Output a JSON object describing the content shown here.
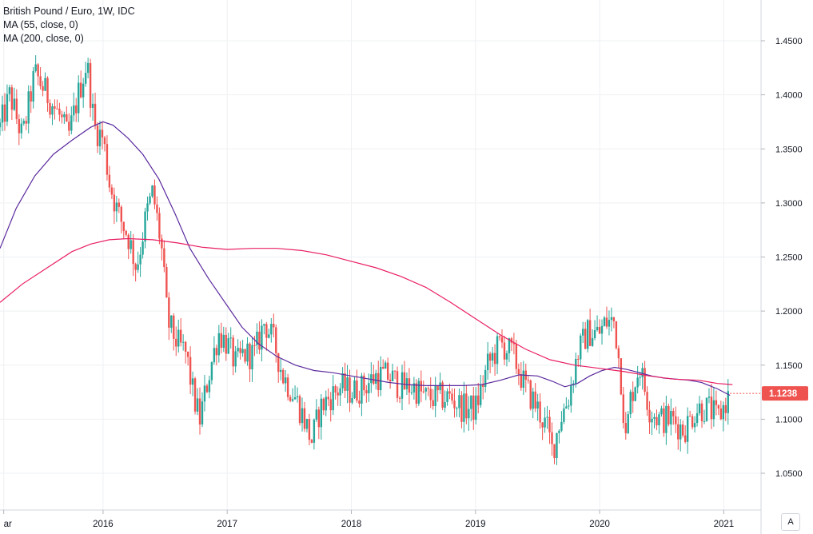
{
  "legend": {
    "title": "British Pound / Euro, 1W, IDC",
    "ma55": "MA (55, close, 0)",
    "ma200": "MA (200, close, 0)"
  },
  "price_label": "1.1238",
  "auto_button": "A",
  "colors": {
    "up": "#26a69a",
    "down": "#ef5350",
    "ma55": "#5b2a9e",
    "ma200": "#e91e63",
    "grid": "#eef0f3",
    "price_label_bg": "#ef5350"
  },
  "chart_data": {
    "type": "candlestick",
    "title": "British Pound / Euro, 1W, IDC",
    "xlabel": "",
    "ylabel": "",
    "ylim": [
      1.03,
      1.48
    ],
    "y_ticks": [
      "1.0500",
      "1.1000",
      "1.1500",
      "1.2000",
      "1.2500",
      "1.3000",
      "1.3500",
      "1.4000",
      "1.4500"
    ],
    "x_ticks": [
      "ar",
      "2016",
      "2017",
      "2018",
      "2019",
      "2020",
      "2021"
    ],
    "x_tick_values": [
      2015.2,
      2016.0,
      2017.0,
      2018.0,
      2019.0,
      2020.0,
      2021.0
    ],
    "xlim": [
      2015.17,
      2021.3
    ],
    "last_price": 1.1238,
    "close_path": [
      [
        2015.17,
        1.37
      ],
      [
        2015.25,
        1.4
      ],
      [
        2015.35,
        1.36
      ],
      [
        2015.45,
        1.42
      ],
      [
        2015.55,
        1.4
      ],
      [
        2015.65,
        1.38
      ],
      [
        2015.72,
        1.36
      ],
      [
        2015.8,
        1.4
      ],
      [
        2015.87,
        1.43
      ],
      [
        2015.93,
        1.37
      ],
      [
        2016.0,
        1.36
      ],
      [
        2016.05,
        1.32
      ],
      [
        2016.12,
        1.29
      ],
      [
        2016.2,
        1.27
      ],
      [
        2016.27,
        1.24
      ],
      [
        2016.35,
        1.29
      ],
      [
        2016.4,
        1.31
      ],
      [
        2016.47,
        1.26
      ],
      [
        2016.52,
        1.19
      ],
      [
        2016.6,
        1.17
      ],
      [
        2016.67,
        1.16
      ],
      [
        2016.73,
        1.12
      ],
      [
        2016.78,
        1.1
      ],
      [
        2016.85,
        1.14
      ],
      [
        2016.93,
        1.18
      ],
      [
        2017.0,
        1.17
      ],
      [
        2017.07,
        1.15
      ],
      [
        2017.13,
        1.16
      ],
      [
        2017.22,
        1.16
      ],
      [
        2017.3,
        1.19
      ],
      [
        2017.38,
        1.17
      ],
      [
        2017.45,
        1.14
      ],
      [
        2017.55,
        1.12
      ],
      [
        2017.62,
        1.1
      ],
      [
        2017.68,
        1.08
      ],
      [
        2017.75,
        1.11
      ],
      [
        2017.82,
        1.12
      ],
      [
        2017.92,
        1.13
      ],
      [
        2018.0,
        1.125
      ],
      [
        2018.1,
        1.13
      ],
      [
        2018.2,
        1.14
      ],
      [
        2018.3,
        1.14
      ],
      [
        2018.4,
        1.13
      ],
      [
        2018.5,
        1.13
      ],
      [
        2018.6,
        1.12
      ],
      [
        2018.7,
        1.12
      ],
      [
        2018.8,
        1.12
      ],
      [
        2018.9,
        1.11
      ],
      [
        2019.0,
        1.11
      ],
      [
        2019.1,
        1.15
      ],
      [
        2019.2,
        1.17
      ],
      [
        2019.3,
        1.16
      ],
      [
        2019.4,
        1.13
      ],
      [
        2019.5,
        1.11
      ],
      [
        2019.58,
        1.09
      ],
      [
        2019.62,
        1.07
      ],
      [
        2019.68,
        1.1
      ],
      [
        2019.75,
        1.12
      ],
      [
        2019.82,
        1.16
      ],
      [
        2019.9,
        1.18
      ],
      [
        2020.0,
        1.18
      ],
      [
        2020.05,
        1.19
      ],
      [
        2020.12,
        1.19
      ],
      [
        2020.17,
        1.14
      ],
      [
        2020.21,
        1.08
      ],
      [
        2020.25,
        1.12
      ],
      [
        2020.32,
        1.15
      ],
      [
        2020.4,
        1.11
      ],
      [
        2020.48,
        1.1
      ],
      [
        2020.58,
        1.1
      ],
      [
        2020.68,
        1.09
      ],
      [
        2020.78,
        1.11
      ],
      [
        2020.88,
        1.11
      ],
      [
        2020.95,
        1.1
      ],
      [
        2021.05,
        1.1238
      ]
    ],
    "series": [
      {
        "name": "MA (55, close, 0)",
        "points": [
          [
            2015.17,
            1.258
          ],
          [
            2015.3,
            1.295
          ],
          [
            2015.45,
            1.325
          ],
          [
            2015.6,
            1.345
          ],
          [
            2015.75,
            1.358
          ],
          [
            2015.9,
            1.37
          ],
          [
            2016.0,
            1.375
          ],
          [
            2016.08,
            1.372
          ],
          [
            2016.2,
            1.36
          ],
          [
            2016.32,
            1.345
          ],
          [
            2016.45,
            1.322
          ],
          [
            2016.58,
            1.29
          ],
          [
            2016.7,
            1.258
          ],
          [
            2016.85,
            1.23
          ],
          [
            2017.0,
            1.205
          ],
          [
            2017.12,
            1.185
          ],
          [
            2017.25,
            1.17
          ],
          [
            2017.4,
            1.158
          ],
          [
            2017.55,
            1.15
          ],
          [
            2017.7,
            1.145
          ],
          [
            2017.85,
            1.143
          ],
          [
            2018.0,
            1.14
          ],
          [
            2018.15,
            1.137
          ],
          [
            2018.3,
            1.134
          ],
          [
            2018.45,
            1.132
          ],
          [
            2018.6,
            1.131
          ],
          [
            2018.75,
            1.131
          ],
          [
            2018.9,
            1.131
          ],
          [
            2019.05,
            1.132
          ],
          [
            2019.2,
            1.136
          ],
          [
            2019.35,
            1.141
          ],
          [
            2019.5,
            1.14
          ],
          [
            2019.62,
            1.135
          ],
          [
            2019.72,
            1.13
          ],
          [
            2019.82,
            1.133
          ],
          [
            2019.92,
            1.14
          ],
          [
            2020.02,
            1.145
          ],
          [
            2020.12,
            1.148
          ],
          [
            2020.22,
            1.146
          ],
          [
            2020.32,
            1.143
          ],
          [
            2020.42,
            1.14
          ],
          [
            2020.52,
            1.138
          ],
          [
            2020.62,
            1.137
          ],
          [
            2020.72,
            1.136
          ],
          [
            2020.82,
            1.134
          ],
          [
            2020.95,
            1.128
          ],
          [
            2021.05,
            1.122
          ]
        ]
      },
      {
        "name": "MA (200, close, 0)",
        "points": [
          [
            2015.17,
            1.208
          ],
          [
            2015.35,
            1.225
          ],
          [
            2015.55,
            1.24
          ],
          [
            2015.75,
            1.255
          ],
          [
            2015.9,
            1.262
          ],
          [
            2016.05,
            1.266
          ],
          [
            2016.2,
            1.267
          ],
          [
            2016.4,
            1.266
          ],
          [
            2016.6,
            1.263
          ],
          [
            2016.8,
            1.259
          ],
          [
            2017.0,
            1.257
          ],
          [
            2017.2,
            1.258
          ],
          [
            2017.4,
            1.258
          ],
          [
            2017.6,
            1.256
          ],
          [
            2017.8,
            1.252
          ],
          [
            2018.0,
            1.246
          ],
          [
            2018.2,
            1.24
          ],
          [
            2018.4,
            1.232
          ],
          [
            2018.6,
            1.222
          ],
          [
            2018.8,
            1.208
          ],
          [
            2019.0,
            1.193
          ],
          [
            2019.2,
            1.178
          ],
          [
            2019.4,
            1.165
          ],
          [
            2019.6,
            1.155
          ],
          [
            2019.8,
            1.15
          ],
          [
            2020.0,
            1.147
          ],
          [
            2020.2,
            1.144
          ],
          [
            2020.4,
            1.14
          ],
          [
            2020.6,
            1.137
          ],
          [
            2020.8,
            1.136
          ],
          [
            2020.95,
            1.133
          ],
          [
            2021.07,
            1.132
          ]
        ]
      }
    ]
  }
}
